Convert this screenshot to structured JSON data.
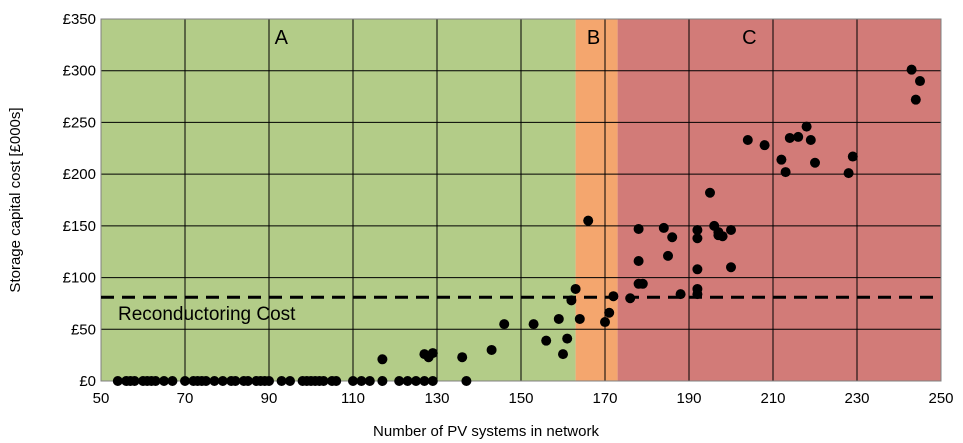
{
  "chart_data": {
    "type": "scatter",
    "title": "",
    "xlabel": "Number of PV systems in network",
    "ylabel": "Storage capital cost [£000s]",
    "xlim": [
      50,
      250
    ],
    "ylim": [
      0,
      350
    ],
    "x_ticks": [
      "50",
      "70",
      "90",
      "110",
      "130",
      "150",
      "170",
      "190",
      "210",
      "230",
      "250"
    ],
    "x_tick_values": [
      50,
      70,
      90,
      110,
      130,
      150,
      170,
      190,
      210,
      230,
      250
    ],
    "y_ticks": [
      "£0",
      "£50",
      "£100",
      "£150",
      "£200",
      "£250",
      "£300",
      "£350"
    ],
    "y_tick_values": [
      0,
      50,
      100,
      150,
      200,
      250,
      300,
      350
    ],
    "grid": "on",
    "regions": [
      {
        "label": "A",
        "x_from": 50,
        "x_to": 163,
        "color": "#b3cc88"
      },
      {
        "label": "B",
        "x_from": 163,
        "x_to": 173,
        "color": "#f4a66e"
      },
      {
        "label": "C",
        "x_from": 173,
        "x_to": 250,
        "color": "#d27b78"
      }
    ],
    "reference_line": {
      "label": "Reconductoring Cost",
      "y": 81,
      "style": "dashed"
    },
    "points": [
      [
        54,
        0
      ],
      [
        56,
        0
      ],
      [
        57,
        0
      ],
      [
        58,
        0
      ],
      [
        60,
        0
      ],
      [
        61,
        0
      ],
      [
        62,
        0
      ],
      [
        63,
        0
      ],
      [
        65,
        0
      ],
      [
        67,
        0
      ],
      [
        70,
        0
      ],
      [
        72,
        0
      ],
      [
        73,
        0
      ],
      [
        74,
        0
      ],
      [
        75,
        0
      ],
      [
        77,
        0
      ],
      [
        79,
        0
      ],
      [
        81,
        0
      ],
      [
        82,
        0
      ],
      [
        84,
        0
      ],
      [
        85,
        0
      ],
      [
        87,
        0
      ],
      [
        88,
        0
      ],
      [
        89,
        0
      ],
      [
        90,
        0
      ],
      [
        93,
        0
      ],
      [
        95,
        0
      ],
      [
        98,
        0
      ],
      [
        99,
        0
      ],
      [
        100,
        0
      ],
      [
        101,
        0
      ],
      [
        102,
        0
      ],
      [
        103,
        0
      ],
      [
        105,
        0
      ],
      [
        106,
        0
      ],
      [
        110,
        0
      ],
      [
        112,
        0
      ],
      [
        114,
        0
      ],
      [
        117,
        0
      ],
      [
        117,
        21
      ],
      [
        121,
        0
      ],
      [
        123,
        0
      ],
      [
        125,
        0
      ],
      [
        127,
        0
      ],
      [
        127,
        26
      ],
      [
        128,
        23
      ],
      [
        129,
        0
      ],
      [
        129,
        27
      ],
      [
        136,
        23
      ],
      [
        137,
        0
      ],
      [
        143,
        30
      ],
      [
        146,
        55
      ],
      [
        153,
        55
      ],
      [
        156,
        39
      ],
      [
        159,
        60
      ],
      [
        160,
        26
      ],
      [
        161,
        41
      ],
      [
        162,
        78
      ],
      [
        163,
        89
      ],
      [
        164,
        60
      ],
      [
        166,
        155
      ],
      [
        170,
        57
      ],
      [
        171,
        66
      ],
      [
        172,
        82
      ],
      [
        176,
        80
      ],
      [
        178,
        94
      ],
      [
        178,
        116
      ],
      [
        178,
        147
      ],
      [
        179,
        94
      ],
      [
        184,
        148
      ],
      [
        185,
        121
      ],
      [
        186,
        139
      ],
      [
        188,
        84
      ],
      [
        192,
        84
      ],
      [
        192,
        89
      ],
      [
        192,
        108
      ],
      [
        192,
        138
      ],
      [
        192,
        146
      ],
      [
        195,
        182
      ],
      [
        196,
        150
      ],
      [
        197,
        141
      ],
      [
        197,
        144
      ],
      [
        198,
        140
      ],
      [
        200,
        110
      ],
      [
        200,
        146
      ],
      [
        204,
        233
      ],
      [
        208,
        228
      ],
      [
        212,
        214
      ],
      [
        213,
        202
      ],
      [
        214,
        235
      ],
      [
        216,
        236
      ],
      [
        218,
        246
      ],
      [
        219,
        233
      ],
      [
        220,
        211
      ],
      [
        228,
        201
      ],
      [
        229,
        217
      ],
      [
        243,
        301
      ],
      [
        244,
        272
      ],
      [
        245,
        290
      ]
    ]
  }
}
